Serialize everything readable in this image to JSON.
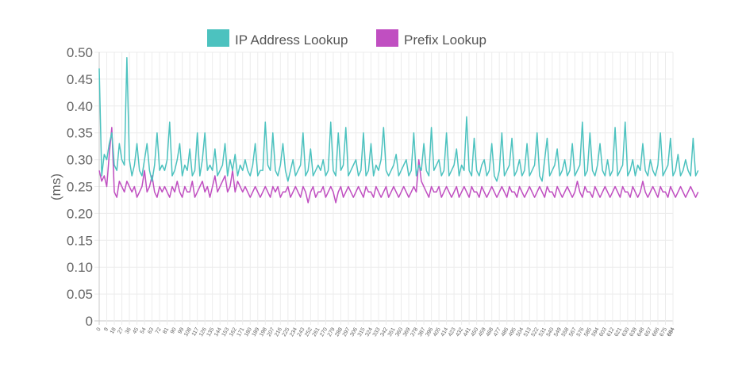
{
  "chart_data": {
    "type": "line",
    "ylabel": "(ms)",
    "ylim": [
      0,
      0.5
    ],
    "yticks": [
      "0",
      "0.05",
      "0.10",
      "0.15",
      "0.20",
      "0.25",
      "0.30",
      "0.35",
      "0.40",
      "0.45",
      "0.50"
    ],
    "x_range": [
      0,
      684
    ],
    "x_step": 3,
    "xtick_step": 9,
    "grid": true,
    "legend_position": "top-center",
    "series": [
      {
        "name": "IP Address Lookup",
        "color": "#4cc2bf",
        "values": [
          0.47,
          0.27,
          0.31,
          0.3,
          0.33,
          0.35,
          0.29,
          0.28,
          0.33,
          0.3,
          0.29,
          0.49,
          0.3,
          0.27,
          0.29,
          0.33,
          0.28,
          0.27,
          0.3,
          0.33,
          0.28,
          0.26,
          0.29,
          0.35,
          0.28,
          0.29,
          0.28,
          0.3,
          0.37,
          0.27,
          0.28,
          0.3,
          0.33,
          0.27,
          0.29,
          0.28,
          0.32,
          0.27,
          0.28,
          0.35,
          0.27,
          0.3,
          0.35,
          0.28,
          0.29,
          0.28,
          0.32,
          0.27,
          0.28,
          0.29,
          0.33,
          0.27,
          0.3,
          0.28,
          0.31,
          0.27,
          0.29,
          0.28,
          0.3,
          0.28,
          0.27,
          0.29,
          0.33,
          0.27,
          0.28,
          0.28,
          0.37,
          0.29,
          0.28,
          0.35,
          0.28,
          0.27,
          0.29,
          0.33,
          0.28,
          0.26,
          0.28,
          0.3,
          0.27,
          0.28,
          0.29,
          0.35,
          0.27,
          0.28,
          0.32,
          0.27,
          0.28,
          0.29,
          0.28,
          0.3,
          0.27,
          0.28,
          0.37,
          0.28,
          0.27,
          0.35,
          0.28,
          0.29,
          0.36,
          0.27,
          0.28,
          0.29,
          0.3,
          0.27,
          0.28,
          0.35,
          0.27,
          0.28,
          0.33,
          0.27,
          0.29,
          0.28,
          0.3,
          0.36,
          0.28,
          0.27,
          0.28,
          0.29,
          0.31,
          0.27,
          0.28,
          0.29,
          0.3,
          0.27,
          0.28,
          0.35,
          0.27,
          0.29,
          0.28,
          0.33,
          0.28,
          0.27,
          0.36,
          0.28,
          0.29,
          0.3,
          0.27,
          0.28,
          0.35,
          0.27,
          0.28,
          0.29,
          0.32,
          0.27,
          0.29,
          0.28,
          0.38,
          0.28,
          0.27,
          0.34,
          0.28,
          0.27,
          0.29,
          0.3,
          0.27,
          0.28,
          0.33,
          0.27,
          0.26,
          0.28,
          0.35,
          0.27,
          0.28,
          0.29,
          0.34,
          0.27,
          0.28,
          0.3,
          0.27,
          0.28,
          0.33,
          0.27,
          0.28,
          0.29,
          0.35,
          0.27,
          0.26,
          0.3,
          0.34,
          0.27,
          0.28,
          0.29,
          0.32,
          0.27,
          0.28,
          0.3,
          0.27,
          0.28,
          0.33,
          0.27,
          0.28,
          0.29,
          0.37,
          0.27,
          0.28,
          0.35,
          0.28,
          0.27,
          0.29,
          0.33,
          0.28,
          0.27,
          0.3,
          0.27,
          0.28,
          0.36,
          0.27,
          0.28,
          0.29,
          0.37,
          0.27,
          0.28,
          0.3,
          0.27,
          0.29,
          0.28,
          0.33,
          0.28,
          0.27,
          0.3,
          0.28,
          0.27,
          0.29,
          0.35,
          0.27,
          0.28,
          0.29,
          0.34,
          0.27,
          0.28,
          0.31,
          0.27,
          0.28,
          0.3,
          0.28,
          0.27,
          0.34,
          0.27,
          0.28
        ]
      },
      {
        "name": "Prefix Lookup",
        "color": "#c04fc1",
        "values": [
          0.28,
          0.26,
          0.27,
          0.25,
          0.31,
          0.36,
          0.24,
          0.23,
          0.26,
          0.25,
          0.24,
          0.26,
          0.25,
          0.24,
          0.25,
          0.23,
          0.24,
          0.25,
          0.28,
          0.24,
          0.25,
          0.27,
          0.24,
          0.23,
          0.25,
          0.24,
          0.25,
          0.24,
          0.23,
          0.25,
          0.24,
          0.26,
          0.24,
          0.23,
          0.25,
          0.24,
          0.24,
          0.26,
          0.23,
          0.24,
          0.25,
          0.26,
          0.24,
          0.25,
          0.23,
          0.25,
          0.27,
          0.24,
          0.25,
          0.26,
          0.27,
          0.24,
          0.25,
          0.28,
          0.24,
          0.26,
          0.25,
          0.24,
          0.25,
          0.24,
          0.23,
          0.24,
          0.25,
          0.24,
          0.23,
          0.24,
          0.25,
          0.24,
          0.23,
          0.25,
          0.24,
          0.25,
          0.23,
          0.24,
          0.24,
          0.25,
          0.23,
          0.24,
          0.25,
          0.24,
          0.23,
          0.25,
          0.24,
          0.22,
          0.24,
          0.25,
          0.23,
          0.24,
          0.24,
          0.25,
          0.23,
          0.24,
          0.25,
          0.24,
          0.22,
          0.24,
          0.25,
          0.23,
          0.24,
          0.25,
          0.24,
          0.23,
          0.24,
          0.25,
          0.24,
          0.23,
          0.25,
          0.24,
          0.24,
          0.23,
          0.25,
          0.24,
          0.23,
          0.24,
          0.25,
          0.23,
          0.24,
          0.25,
          0.24,
          0.23,
          0.24,
          0.25,
          0.24,
          0.23,
          0.24,
          0.25,
          0.24,
          0.3,
          0.26,
          0.25,
          0.24,
          0.23,
          0.25,
          0.24,
          0.24,
          0.25,
          0.23,
          0.24,
          0.25,
          0.24,
          0.23,
          0.24,
          0.25,
          0.23,
          0.24,
          0.25,
          0.24,
          0.23,
          0.25,
          0.24,
          0.24,
          0.23,
          0.25,
          0.24,
          0.23,
          0.24,
          0.25,
          0.24,
          0.23,
          0.24,
          0.25,
          0.24,
          0.23,
          0.25,
          0.24,
          0.24,
          0.23,
          0.25,
          0.24,
          0.23,
          0.24,
          0.25,
          0.24,
          0.23,
          0.24,
          0.25,
          0.24,
          0.23,
          0.25,
          0.24,
          0.24,
          0.23,
          0.25,
          0.24,
          0.23,
          0.24,
          0.25,
          0.24,
          0.23,
          0.24,
          0.26,
          0.24,
          0.23,
          0.25,
          0.24,
          0.24,
          0.23,
          0.25,
          0.24,
          0.23,
          0.24,
          0.25,
          0.24,
          0.23,
          0.24,
          0.25,
          0.24,
          0.23,
          0.25,
          0.24,
          0.24,
          0.23,
          0.25,
          0.24,
          0.23,
          0.24,
          0.26,
          0.24,
          0.23,
          0.24,
          0.25,
          0.24,
          0.23,
          0.25,
          0.24,
          0.24,
          0.23,
          0.25,
          0.24,
          0.23,
          0.24,
          0.25,
          0.24,
          0.23,
          0.24,
          0.25,
          0.24,
          0.23,
          0.24
        ]
      }
    ]
  }
}
